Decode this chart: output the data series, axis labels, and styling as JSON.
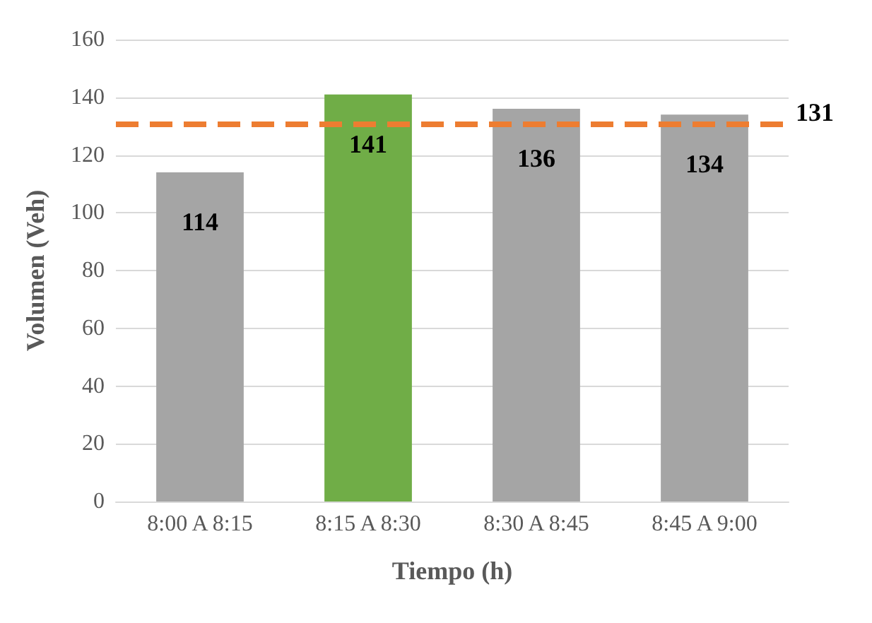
{
  "chart_data": {
    "type": "bar",
    "xlabel": "Tiempo (h)",
    "ylabel": "Volumen (Veh)",
    "categories": [
      "8:00 A 8:15",
      "8:15 A 8:30",
      "8:30 A 8:45",
      "8:45 A 9:00"
    ],
    "values": [
      114,
      141,
      136,
      134
    ],
    "colors": [
      "#a5a5a5",
      "#70ad47",
      "#a5a5a5",
      "#a5a5a5"
    ],
    "ylim": [
      0,
      160
    ],
    "yticks": [
      0,
      20,
      40,
      60,
      80,
      100,
      120,
      140,
      160
    ],
    "grid": "y",
    "data_labels": true,
    "ref_lines": [
      {
        "axis": "y",
        "value": 131,
        "label": "131",
        "color": "#ed7d31",
        "line_style": "dashed"
      }
    ]
  }
}
